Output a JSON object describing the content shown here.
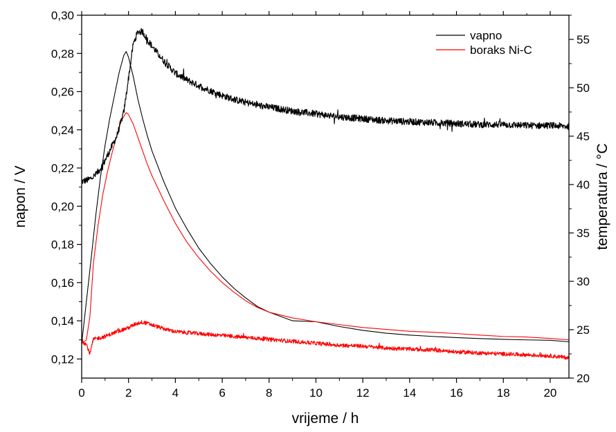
{
  "chart_data": {
    "type": "line",
    "xlabel": "vrijeme / h",
    "ylabel_left": "napon / V",
    "ylabel_right": "temperatura / °C",
    "xlim": [
      0,
      20.8
    ],
    "ylim_left": [
      0.11,
      0.3
    ],
    "ylim_right": [
      20,
      57.5
    ],
    "x_ticks": [
      0,
      2,
      4,
      6,
      8,
      10,
      12,
      14,
      16,
      18,
      20
    ],
    "x_tick_labels": [
      "0",
      "2",
      "4",
      "6",
      "8",
      "10",
      "12",
      "14",
      "16",
      "18",
      "20"
    ],
    "y_left_ticks": [
      0.12,
      0.14,
      0.16,
      0.18,
      0.2,
      0.22,
      0.24,
      0.26,
      0.28,
      0.3
    ],
    "y_left_tick_labels": [
      "0,12",
      "0,14",
      "0,16",
      "0,18",
      "0,20",
      "0,22",
      "0,24",
      "0,26",
      "0,28",
      "0,30"
    ],
    "y_right_ticks": [
      20,
      25,
      30,
      35,
      40,
      45,
      50,
      55
    ],
    "y_right_tick_labels": [
      "20",
      "25",
      "30",
      "35",
      "40",
      "45",
      "50",
      "55"
    ],
    "grid": false,
    "legend_position": "top-right",
    "legend": [
      {
        "label": "vapno",
        "color": "#000000"
      },
      {
        "label": "boraks Ni-C",
        "color": "#ff0000"
      }
    ],
    "series": [
      {
        "name": "vapno",
        "axis": "left",
        "kind": "thin",
        "color": "#000000",
        "x": [
          0,
          0.2,
          0.4,
          0.6,
          0.8,
          1.0,
          1.2,
          1.4,
          1.6,
          1.8,
          1.9,
          2.0,
          2.2,
          2.4,
          2.6,
          2.8,
          3.0,
          3.5,
          4.0,
          4.5,
          5.0,
          5.5,
          6.0,
          6.5,
          7.0,
          7.5,
          8.0,
          9.0,
          10.0,
          11.0,
          12.0,
          13.0,
          14.0,
          15.0,
          16.0,
          17.0,
          18.0,
          19.0,
          20.0,
          20.8
        ],
        "y": [
          0.128,
          0.15,
          0.172,
          0.195,
          0.215,
          0.232,
          0.246,
          0.258,
          0.27,
          0.279,
          0.281,
          0.278,
          0.268,
          0.256,
          0.246,
          0.237,
          0.229,
          0.213,
          0.199,
          0.188,
          0.178,
          0.17,
          0.163,
          0.157,
          0.152,
          0.1475,
          0.1445,
          0.14,
          0.1395,
          0.137,
          0.135,
          0.1335,
          0.1325,
          0.1318,
          0.1312,
          0.1307,
          0.1303,
          0.13,
          0.1298,
          0.129
        ]
      },
      {
        "name": "boraks Ni-C",
        "axis": "left",
        "kind": "thin",
        "color": "#ff0000",
        "x": [
          0,
          0.2,
          0.35,
          0.5,
          0.7,
          0.9,
          1.1,
          1.3,
          1.5,
          1.7,
          1.9,
          2.0,
          2.2,
          2.4,
          2.6,
          2.8,
          3.0,
          3.5,
          4.0,
          4.5,
          5.0,
          5.5,
          6.0,
          6.5,
          7.0,
          7.5,
          8.0,
          9.0,
          10.0,
          11.0,
          12.0,
          13.0,
          14.0,
          15.0,
          16.0,
          17.0,
          18.0,
          19.0,
          20.0,
          20.8
        ],
        "y": [
          0.128,
          0.13,
          0.142,
          0.17,
          0.19,
          0.206,
          0.218,
          0.228,
          0.237,
          0.245,
          0.249,
          0.248,
          0.243,
          0.236,
          0.229,
          0.222,
          0.216,
          0.203,
          0.191,
          0.181,
          0.173,
          0.166,
          0.16,
          0.155,
          0.1505,
          0.147,
          0.1445,
          0.1415,
          0.1395,
          0.138,
          0.1365,
          0.1355,
          0.1345,
          0.134,
          0.1333,
          0.1325,
          0.1318,
          0.1315,
          0.1308,
          0.13
        ]
      },
      {
        "name": "vapno",
        "axis": "right",
        "kind": "noisy",
        "noise": 0.35,
        "color": "#000000",
        "x": [
          0,
          0.3,
          0.6,
          0.9,
          1.2,
          1.5,
          1.8,
          2.0,
          2.2,
          2.4,
          2.6,
          2.8,
          3.0,
          3.5,
          4.0,
          4.5,
          5.0,
          5.5,
          6.0,
          6.5,
          7.0,
          7.5,
          8.0,
          9.0,
          10.0,
          11.0,
          12.0,
          13.0,
          14.0,
          15.0,
          16.0,
          17.0,
          18.0,
          19.0,
          20.0,
          20.8
        ],
        "y": [
          40.3,
          40.5,
          41.0,
          42.0,
          43.5,
          45.0,
          47.5,
          51.0,
          54.5,
          55.8,
          55.8,
          55.0,
          54.3,
          52.8,
          51.5,
          50.8,
          50.2,
          49.7,
          49.2,
          48.8,
          48.5,
          48.2,
          48.0,
          47.6,
          47.3,
          47.0,
          46.8,
          46.6,
          46.5,
          46.4,
          46.3,
          46.2,
          46.2,
          46.1,
          46.1,
          46.0
        ]
      },
      {
        "name": "boraks Ni-C",
        "axis": "right",
        "kind": "noisy",
        "noise": 0.2,
        "color": "#ff0000",
        "x": [
          0,
          0.2,
          0.35,
          0.5,
          1.0,
          1.5,
          2.0,
          2.3,
          2.6,
          3.0,
          3.5,
          4.0,
          5.0,
          6.0,
          7.0,
          8.0,
          9.0,
          10.0,
          11.0,
          12.0,
          13.0,
          14.0,
          15.0,
          16.0,
          17.0,
          18.0,
          19.0,
          20.0,
          20.8
        ],
        "y": [
          23.8,
          23.5,
          22.5,
          24.0,
          24.3,
          24.8,
          25.2,
          25.6,
          25.8,
          25.5,
          25.1,
          24.8,
          24.6,
          24.4,
          24.2,
          24.0,
          23.8,
          23.6,
          23.4,
          23.3,
          23.1,
          23.0,
          22.9,
          22.7,
          22.6,
          22.5,
          22.4,
          22.3,
          22.1
        ]
      }
    ]
  }
}
